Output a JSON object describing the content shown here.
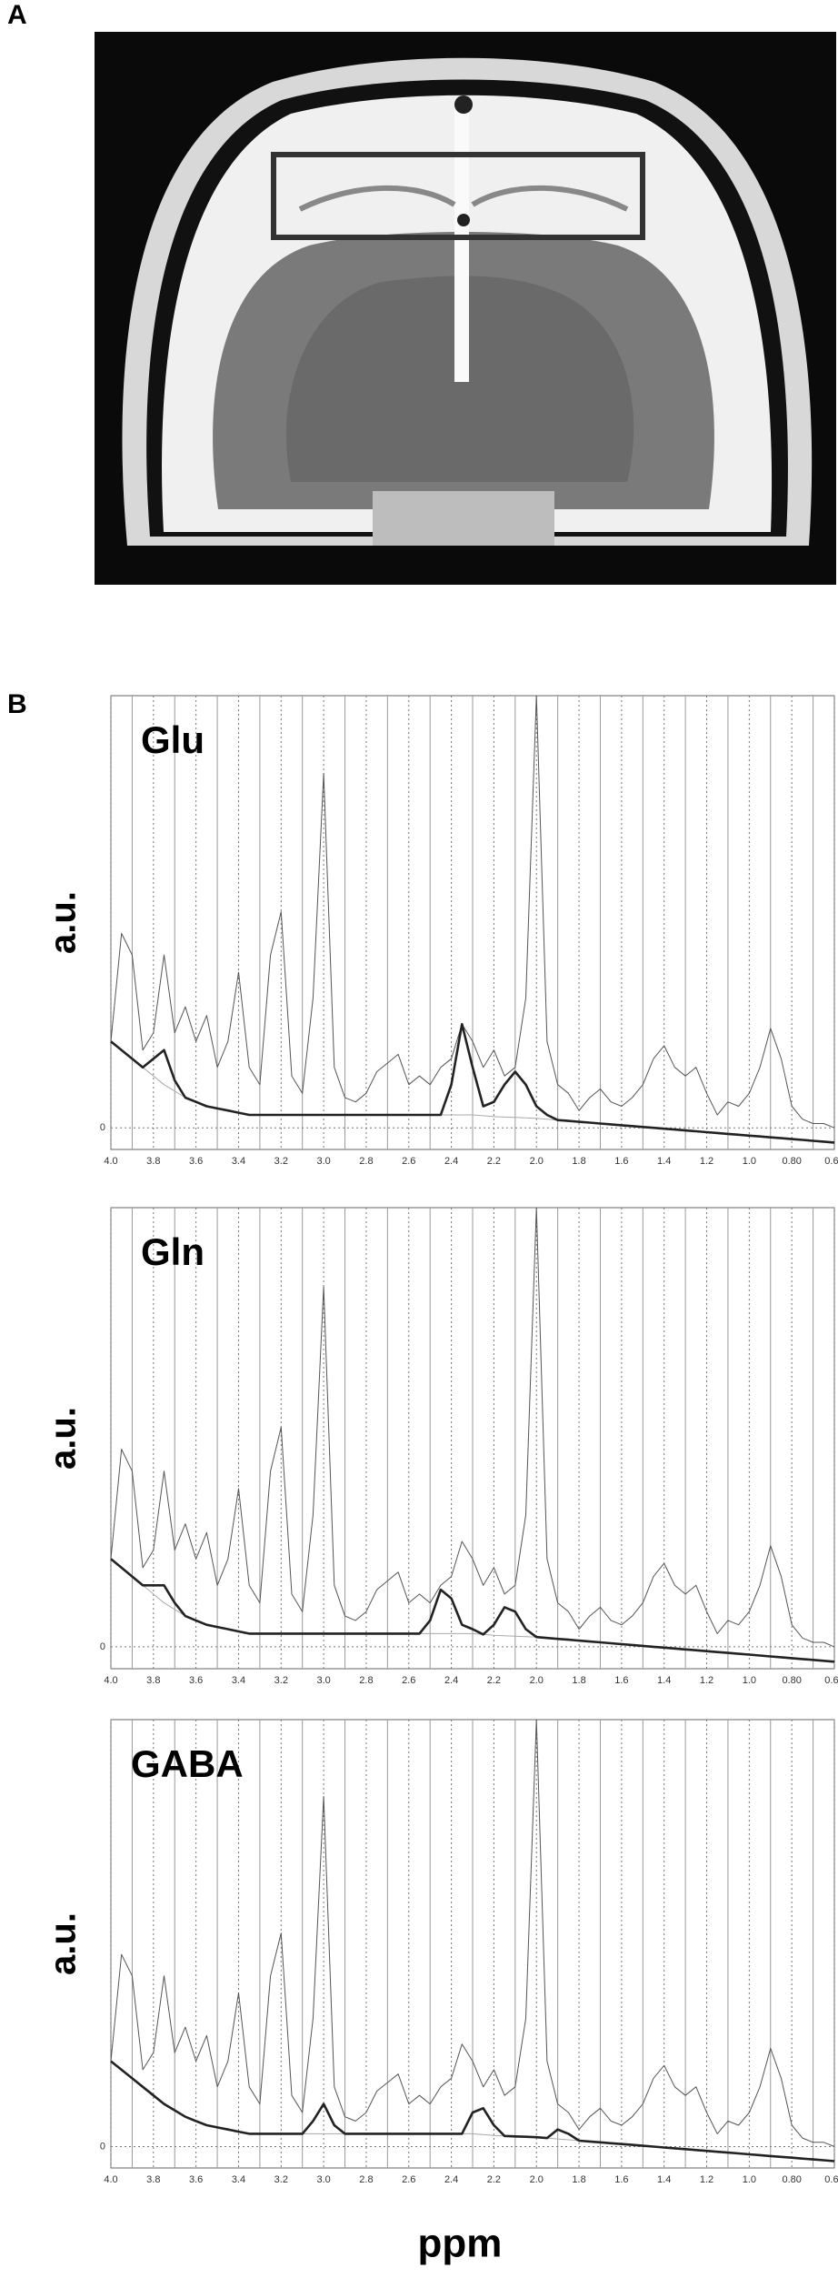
{
  "panels": [
    "A",
    "B"
  ],
  "chart_data": [
    {
      "type": "line",
      "title": "Glu",
      "ylabel": "a.u.",
      "x": [
        4.0,
        3.95,
        3.9,
        3.85,
        3.8,
        3.75,
        3.7,
        3.65,
        3.6,
        3.55,
        3.5,
        3.45,
        3.4,
        3.35,
        3.3,
        3.25,
        3.2,
        3.15,
        3.1,
        3.05,
        3.0,
        2.95,
        2.9,
        2.85,
        2.8,
        2.75,
        2.7,
        2.65,
        2.6,
        2.55,
        2.5,
        2.45,
        2.4,
        2.35,
        2.3,
        2.25,
        2.2,
        2.15,
        2.1,
        2.05,
        2.0,
        1.95,
        1.9,
        1.85,
        1.8,
        1.75,
        1.7,
        1.65,
        1.6,
        1.55,
        1.5,
        1.45,
        1.4,
        1.35,
        1.3,
        1.25,
        1.2,
        1.15,
        1.1,
        1.05,
        1.0,
        0.95,
        0.9,
        0.85,
        0.8,
        0.75,
        0.7,
        0.65,
        0.6
      ],
      "xlim": [
        4.0,
        0.6
      ],
      "xticks": [
        {
          "value": 4,
          "label": "4.0"
        },
        3.8,
        3.6,
        3.4,
        3.2,
        {
          "value": 3,
          "label": "3.0"
        },
        2.8,
        2.6,
        2.4,
        2.2,
        {
          "value": 2,
          "label": "2.0"
        },
        1.8,
        1.6,
        1.4,
        1.2,
        {
          "value": 1,
          "label": "1.0"
        },
        {
          "value": 0.8,
          "label": "0.80"
        },
        {
          "value": 0.6,
          "label": "0.60"
        }
      ],
      "ylim": [
        -0.05,
        1.0
      ],
      "yticks": [
        0
      ],
      "series": [
        {
          "color": "#555555",
          "values": [
            0.2,
            0.45,
            0.4,
            0.18,
            0.22,
            0.4,
            0.22,
            0.28,
            0.2,
            0.26,
            0.14,
            0.2,
            0.36,
            0.14,
            0.1,
            0.4,
            0.5,
            0.12,
            0.08,
            0.3,
            0.82,
            0.14,
            0.07,
            0.06,
            0.08,
            0.13,
            0.15,
            0.17,
            0.1,
            0.12,
            0.1,
            0.14,
            0.16,
            0.24,
            0.2,
            0.14,
            0.18,
            0.12,
            0.14,
            0.3,
            1.0,
            0.2,
            0.1,
            0.08,
            0.04,
            0.07,
            0.09,
            0.06,
            0.05,
            0.07,
            0.1,
            0.16,
            0.19,
            0.14,
            0.12,
            0.14,
            0.08,
            0.03,
            0.06,
            0.05,
            0.08,
            0.14,
            0.23,
            0.16,
            0.05,
            0.02,
            0.01,
            0.01,
            0.0
          ]
        },
        {
          "color": "#aaaaaa",
          "values": [
            0.2,
            0.18,
            0.16,
            0.14,
            0.12,
            0.1,
            0.085,
            0.07,
            0.06,
            0.05,
            0.045,
            0.04,
            0.035,
            0.03,
            0.03,
            0.03,
            0.03,
            0.03,
            0.03,
            0.03,
            0.03,
            0.03,
            0.03,
            0.03,
            0.03,
            0.03,
            0.03,
            0.03,
            0.03,
            0.03,
            0.03,
            0.03,
            0.03,
            0.03,
            0.03,
            0.028,
            0.026,
            0.025,
            0.024,
            0.023,
            0.022,
            0.02,
            0.018,
            0.016,
            0.014,
            0.012,
            0.01,
            0.008,
            0.006,
            0.004,
            0.002,
            0,
            -0.002,
            -0.004,
            -0.006,
            -0.008,
            -0.01,
            -0.012,
            -0.014,
            -0.016,
            -0.018,
            -0.02,
            -0.022,
            -0.024,
            -0.026,
            -0.028,
            -0.03,
            -0.032,
            -0.034
          ]
        },
        {
          "color": "#222222",
          "values": [
            0.2,
            0.18,
            0.16,
            0.14,
            0.16,
            0.18,
            0.11,
            0.07,
            0.06,
            0.05,
            0.045,
            0.04,
            0.035,
            0.03,
            0.03,
            0.03,
            0.03,
            0.03,
            0.03,
            0.03,
            0.03,
            0.03,
            0.03,
            0.03,
            0.03,
            0.03,
            0.03,
            0.03,
            0.03,
            0.03,
            0.03,
            0.03,
            0.1,
            0.24,
            0.14,
            0.05,
            0.06,
            0.1,
            0.13,
            0.1,
            0.05,
            0.03,
            0.018,
            0.016,
            0.014,
            0.012,
            0.01,
            0.008,
            0.006,
            0.004,
            0.002,
            0,
            -0.002,
            -0.004,
            -0.006,
            -0.008,
            -0.01,
            -0.012,
            -0.014,
            -0.016,
            -0.018,
            -0.02,
            -0.022,
            -0.024,
            -0.026,
            -0.028,
            -0.03,
            -0.032,
            -0.034
          ]
        }
      ]
    },
    {
      "type": "line",
      "title": "Gln",
      "ylabel": "a.u.",
      "x": [
        4.0,
        3.95,
        3.9,
        3.85,
        3.8,
        3.75,
        3.7,
        3.65,
        3.6,
        3.55,
        3.5,
        3.45,
        3.4,
        3.35,
        3.3,
        3.25,
        3.2,
        3.15,
        3.1,
        3.05,
        3.0,
        2.95,
        2.9,
        2.85,
        2.8,
        2.75,
        2.7,
        2.65,
        2.6,
        2.55,
        2.5,
        2.45,
        2.4,
        2.35,
        2.3,
        2.25,
        2.2,
        2.15,
        2.1,
        2.05,
        2.0,
        1.95,
        1.9,
        1.85,
        1.8,
        1.75,
        1.7,
        1.65,
        1.6,
        1.55,
        1.5,
        1.45,
        1.4,
        1.35,
        1.3,
        1.25,
        1.2,
        1.15,
        1.1,
        1.05,
        1.0,
        0.95,
        0.9,
        0.85,
        0.8,
        0.75,
        0.7,
        0.65,
        0.6
      ],
      "xlim": [
        4.0,
        0.6
      ],
      "xticks": [
        {
          "value": 4,
          "label": "4.0"
        },
        3.8,
        3.6,
        3.4,
        3.2,
        {
          "value": 3,
          "label": "3.0"
        },
        2.8,
        2.6,
        2.4,
        2.2,
        {
          "value": 2,
          "label": "2.0"
        },
        1.8,
        1.6,
        1.4,
        1.2,
        {
          "value": 1,
          "label": "1.0"
        },
        {
          "value": 0.8,
          "label": "0.80"
        },
        {
          "value": 0.6,
          "label": "0.60"
        }
      ],
      "ylim": [
        -0.05,
        1.0
      ],
      "yticks": [
        0
      ],
      "series": [
        {
          "color": "#555555",
          "values": [
            0.2,
            0.45,
            0.4,
            0.18,
            0.22,
            0.4,
            0.22,
            0.28,
            0.2,
            0.26,
            0.14,
            0.2,
            0.36,
            0.14,
            0.1,
            0.4,
            0.5,
            0.12,
            0.08,
            0.3,
            0.82,
            0.14,
            0.07,
            0.06,
            0.08,
            0.13,
            0.15,
            0.17,
            0.1,
            0.12,
            0.1,
            0.14,
            0.16,
            0.24,
            0.2,
            0.14,
            0.18,
            0.12,
            0.14,
            0.3,
            1.0,
            0.2,
            0.1,
            0.08,
            0.04,
            0.07,
            0.09,
            0.06,
            0.05,
            0.07,
            0.1,
            0.16,
            0.19,
            0.14,
            0.12,
            0.14,
            0.08,
            0.03,
            0.06,
            0.05,
            0.08,
            0.14,
            0.23,
            0.16,
            0.05,
            0.02,
            0.01,
            0.01,
            0.0
          ]
        },
        {
          "color": "#aaaaaa",
          "values": [
            0.2,
            0.18,
            0.16,
            0.14,
            0.12,
            0.1,
            0.085,
            0.07,
            0.06,
            0.05,
            0.045,
            0.04,
            0.035,
            0.03,
            0.03,
            0.03,
            0.03,
            0.03,
            0.03,
            0.03,
            0.03,
            0.03,
            0.03,
            0.03,
            0.03,
            0.03,
            0.03,
            0.03,
            0.03,
            0.03,
            0.03,
            0.03,
            0.03,
            0.03,
            0.03,
            0.028,
            0.026,
            0.025,
            0.024,
            0.023,
            0.022,
            0.02,
            0.018,
            0.016,
            0.014,
            0.012,
            0.01,
            0.008,
            0.006,
            0.004,
            0.002,
            0,
            -0.002,
            -0.004,
            -0.006,
            -0.008,
            -0.01,
            -0.012,
            -0.014,
            -0.016,
            -0.018,
            -0.02,
            -0.022,
            -0.024,
            -0.026,
            -0.028,
            -0.03,
            -0.032,
            -0.034
          ]
        },
        {
          "color": "#222222",
          "values": [
            0.2,
            0.18,
            0.16,
            0.14,
            0.14,
            0.14,
            0.1,
            0.07,
            0.06,
            0.05,
            0.045,
            0.04,
            0.035,
            0.03,
            0.03,
            0.03,
            0.03,
            0.03,
            0.03,
            0.03,
            0.03,
            0.03,
            0.03,
            0.03,
            0.03,
            0.03,
            0.03,
            0.03,
            0.03,
            0.03,
            0.06,
            0.13,
            0.11,
            0.05,
            0.04,
            0.028,
            0.05,
            0.09,
            0.08,
            0.04,
            0.022,
            0.02,
            0.018,
            0.016,
            0.014,
            0.012,
            0.01,
            0.008,
            0.006,
            0.004,
            0.002,
            0,
            -0.002,
            -0.004,
            -0.006,
            -0.008,
            -0.01,
            -0.012,
            -0.014,
            -0.016,
            -0.018,
            -0.02,
            -0.022,
            -0.024,
            -0.026,
            -0.028,
            -0.03,
            -0.032,
            -0.034
          ]
        }
      ]
    },
    {
      "type": "line",
      "title": "GABA",
      "ylabel": "a.u.",
      "xlabel": "ppm",
      "x": [
        4.0,
        3.95,
        3.9,
        3.85,
        3.8,
        3.75,
        3.7,
        3.65,
        3.6,
        3.55,
        3.5,
        3.45,
        3.4,
        3.35,
        3.3,
        3.25,
        3.2,
        3.15,
        3.1,
        3.05,
        3.0,
        2.95,
        2.9,
        2.85,
        2.8,
        2.75,
        2.7,
        2.65,
        2.6,
        2.55,
        2.5,
        2.45,
        2.4,
        2.35,
        2.3,
        2.25,
        2.2,
        2.15,
        2.1,
        2.05,
        2.0,
        1.95,
        1.9,
        1.85,
        1.8,
        1.75,
        1.7,
        1.65,
        1.6,
        1.55,
        1.5,
        1.45,
        1.4,
        1.35,
        1.3,
        1.25,
        1.2,
        1.15,
        1.1,
        1.05,
        1.0,
        0.95,
        0.9,
        0.85,
        0.8,
        0.75,
        0.7,
        0.65,
        0.6
      ],
      "xlim": [
        4.0,
        0.6
      ],
      "xticks": [
        {
          "value": 4,
          "label": "4.0"
        },
        3.8,
        3.6,
        3.4,
        3.2,
        {
          "value": 3,
          "label": "3.0"
        },
        2.8,
        2.6,
        2.4,
        2.2,
        {
          "value": 2,
          "label": "2.0"
        },
        1.8,
        1.6,
        1.4,
        1.2,
        {
          "value": 1,
          "label": "1.0"
        },
        {
          "value": 0.8,
          "label": "0.80"
        },
        {
          "value": 0.6,
          "label": "0.60"
        }
      ],
      "ylim": [
        -0.05,
        1.0
      ],
      "yticks": [
        0
      ],
      "series": [
        {
          "color": "#555555",
          "values": [
            0.2,
            0.45,
            0.4,
            0.18,
            0.22,
            0.4,
            0.22,
            0.28,
            0.2,
            0.26,
            0.14,
            0.2,
            0.36,
            0.14,
            0.1,
            0.4,
            0.5,
            0.12,
            0.08,
            0.3,
            0.82,
            0.14,
            0.07,
            0.06,
            0.08,
            0.13,
            0.15,
            0.17,
            0.1,
            0.12,
            0.1,
            0.14,
            0.16,
            0.24,
            0.2,
            0.14,
            0.18,
            0.12,
            0.14,
            0.3,
            1.0,
            0.2,
            0.1,
            0.08,
            0.04,
            0.07,
            0.09,
            0.06,
            0.05,
            0.07,
            0.1,
            0.16,
            0.19,
            0.14,
            0.12,
            0.14,
            0.08,
            0.03,
            0.06,
            0.05,
            0.08,
            0.14,
            0.23,
            0.16,
            0.05,
            0.02,
            0.01,
            0.01,
            0.0
          ]
        },
        {
          "color": "#aaaaaa",
          "values": [
            0.2,
            0.18,
            0.16,
            0.14,
            0.12,
            0.1,
            0.085,
            0.07,
            0.06,
            0.05,
            0.045,
            0.04,
            0.035,
            0.03,
            0.03,
            0.03,
            0.03,
            0.03,
            0.03,
            0.03,
            0.03,
            0.03,
            0.03,
            0.03,
            0.03,
            0.03,
            0.03,
            0.03,
            0.03,
            0.03,
            0.03,
            0.03,
            0.03,
            0.03,
            0.03,
            0.028,
            0.026,
            0.025,
            0.024,
            0.023,
            0.022,
            0.02,
            0.018,
            0.016,
            0.014,
            0.012,
            0.01,
            0.008,
            0.006,
            0.004,
            0.002,
            0,
            -0.002,
            -0.004,
            -0.006,
            -0.008,
            -0.01,
            -0.012,
            -0.014,
            -0.016,
            -0.018,
            -0.02,
            -0.022,
            -0.024,
            -0.026,
            -0.028,
            -0.03,
            -0.032,
            -0.034
          ]
        },
        {
          "color": "#222222",
          "values": [
            0.2,
            0.18,
            0.16,
            0.14,
            0.12,
            0.1,
            0.085,
            0.07,
            0.06,
            0.05,
            0.045,
            0.04,
            0.035,
            0.03,
            0.03,
            0.03,
            0.03,
            0.03,
            0.03,
            0.06,
            0.1,
            0.05,
            0.03,
            0.03,
            0.03,
            0.03,
            0.03,
            0.03,
            0.03,
            0.03,
            0.03,
            0.03,
            0.03,
            0.03,
            0.08,
            0.09,
            0.05,
            0.025,
            0.024,
            0.023,
            0.022,
            0.02,
            0.04,
            0.03,
            0.014,
            0.012,
            0.01,
            0.008,
            0.006,
            0.004,
            0.002,
            0,
            -0.002,
            -0.004,
            -0.006,
            -0.008,
            -0.01,
            -0.012,
            -0.014,
            -0.016,
            -0.018,
            -0.02,
            -0.022,
            -0.024,
            -0.026,
            -0.028,
            -0.03,
            -0.032,
            -0.034
          ]
        }
      ]
    }
  ]
}
